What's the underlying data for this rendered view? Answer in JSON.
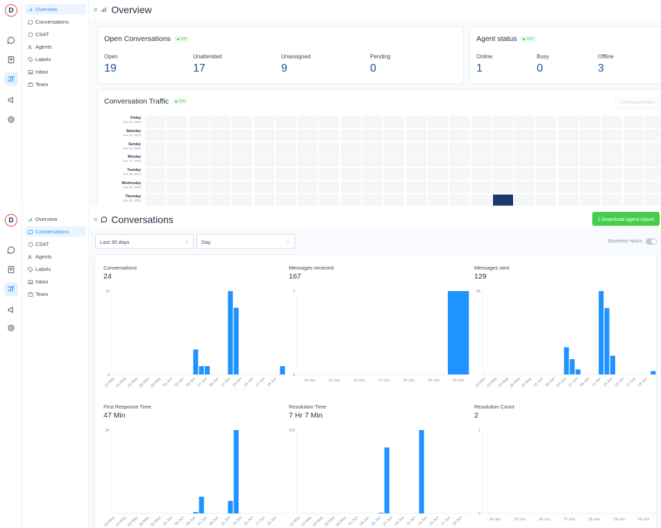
{
  "sidebar": {
    "logo_letter": "D",
    "icons": [
      "chat-icon",
      "contacts-icon",
      "reports-icon",
      "campaigns-icon",
      "settings-icon"
    ],
    "reports_items": [
      {
        "label": "Overview",
        "icon": "overview-icon"
      },
      {
        "label": "Conversations",
        "icon": "conversations-icon"
      },
      {
        "label": "CSAT",
        "icon": "csat-icon"
      },
      {
        "label": "Agents",
        "icon": "agents-icon"
      },
      {
        "label": "Labels",
        "icon": "labels-icon"
      },
      {
        "label": "Inbox",
        "icon": "inbox-icon"
      },
      {
        "label": "Team",
        "icon": "team-icon"
      }
    ]
  },
  "overview": {
    "title": "Overview",
    "open_conversations": {
      "title": "Open Conversations",
      "live": "Live",
      "metrics": [
        {
          "label": "Open",
          "value": "19"
        },
        {
          "label": "Unattended",
          "value": "17"
        },
        {
          "label": "Unassigned",
          "value": "9"
        },
        {
          "label": "Pending",
          "value": "0"
        }
      ]
    },
    "agent_status": {
      "title": "Agent status",
      "live": "Live",
      "metrics": [
        {
          "label": "Online",
          "value": "1"
        },
        {
          "label": "Busy",
          "value": "0"
        },
        {
          "label": "Offline",
          "value": "3"
        }
      ]
    },
    "traffic": {
      "title": "Conversation Traffic",
      "live": "Live",
      "download_label": "Download Report",
      "days": [
        {
          "day": "Friday",
          "date": "Jun 14, 2024"
        },
        {
          "day": "Saturday",
          "date": "Jun 15, 2024"
        },
        {
          "day": "Sunday",
          "date": "Jun 16, 2024"
        },
        {
          "day": "Monday",
          "date": "Jun 17, 2024"
        },
        {
          "day": "Tuesday",
          "date": "Jun 18, 2024"
        },
        {
          "day": "Wednesday",
          "date": "Jun 19, 2024"
        },
        {
          "day": "Thursday",
          "date": "Jun 20, 2024"
        }
      ],
      "hot_cell": {
        "day_index": 6,
        "hour_index": 16
      }
    }
  },
  "conversations_page": {
    "title": "Conversations",
    "download_label": "Download agent report",
    "range_select": "Last 30 days",
    "group_select": "Day",
    "business_hours_label": "Business Hours"
  },
  "colors": {
    "accent": "#1f93ff",
    "bar": "#1f93ff",
    "green": "#44ce4b",
    "heat_hot": "#1b3a70"
  },
  "chart_data": [
    {
      "type": "bar",
      "title": "Conversations",
      "summary": "24",
      "y_tick_labels": [
        "0",
        "10"
      ],
      "ylim": [
        0,
        10
      ],
      "x": [
        "22-May",
        "23-May",
        "24-May",
        "25-May",
        "26-May",
        "27-May",
        "28-May",
        "29-May",
        "30-May",
        "31-May",
        "01-Jun",
        "02-Jun",
        "03-Jun",
        "04-Jun",
        "05-Jun",
        "06-Jun",
        "07-Jun",
        "08-Jun",
        "09-Jun",
        "10-Jun",
        "11-Jun",
        "12-Jun",
        "13-Jun",
        "14-Jun",
        "15-Jun",
        "16-Jun",
        "17-Jun",
        "18-Jun",
        "19-Jun",
        "20-Jun"
      ],
      "x_tick_labels": [
        "22-May",
        "24-May",
        "26-May",
        "28-May",
        "30-May",
        "01-Jun",
        "03-Jun",
        "05-Jun",
        "07-Jun",
        "09-Jun",
        "11-Jun",
        "13-Jun",
        "15-Jun",
        "17-Jun",
        "19-Jun"
      ],
      "values": [
        0,
        0,
        0,
        0,
        0,
        0,
        0,
        0,
        0,
        0,
        0,
        0,
        0,
        0,
        3,
        1,
        1,
        0,
        0,
        0,
        10,
        8,
        0,
        0,
        0,
        0,
        0,
        0,
        0,
        1
      ]
    },
    {
      "type": "bar",
      "title": "Messages received",
      "summary": "167",
      "y_tick_labels": [
        "0",
        "2"
      ],
      "ylim": [
        0,
        2
      ],
      "x": [
        "14-Jun",
        "15-Jun",
        "16-Jun",
        "17-Jun",
        "18-Jun",
        "19-Jun",
        "20-Jun"
      ],
      "x_tick_labels": [
        "14-Jun",
        "15-Jun",
        "16-Jun",
        "17-Jun",
        "18-Jun",
        "19-Jun",
        "20-Jun"
      ],
      "values": [
        0,
        0,
        0,
        0,
        0,
        0,
        2
      ]
    },
    {
      "type": "bar",
      "title": "Messages sent",
      "summary": "129",
      "y_tick_labels": [
        "49"
      ],
      "ylim": [
        0,
        49
      ],
      "x": [
        "22-May",
        "23-May",
        "24-May",
        "25-May",
        "26-May",
        "27-May",
        "28-May",
        "29-May",
        "30-May",
        "31-May",
        "01-Jun",
        "02-Jun",
        "03-Jun",
        "04-Jun",
        "05-Jun",
        "06-Jun",
        "07-Jun",
        "08-Jun",
        "09-Jun",
        "10-Jun",
        "11-Jun",
        "12-Jun",
        "13-Jun",
        "14-Jun",
        "15-Jun",
        "16-Jun",
        "17-Jun",
        "18-Jun",
        "19-Jun",
        "20-Jun"
      ],
      "x_tick_labels": [
        "22-May",
        "24-May",
        "26-May",
        "28-May",
        "30-May",
        "01-Jun",
        "03-Jun",
        "05-Jun",
        "07-Jun",
        "09-Jun",
        "11-Jun",
        "13-Jun",
        "15-Jun",
        "17-Jun",
        "19-Jun"
      ],
      "values": [
        0,
        0,
        0,
        0,
        0,
        0,
        0,
        0,
        0,
        0,
        0,
        0,
        0,
        0,
        16,
        9,
        3,
        0,
        0,
        0,
        49,
        39,
        11,
        0,
        0,
        0,
        0,
        0,
        0,
        2
      ]
    },
    {
      "type": "bar",
      "title": "First Response Time",
      "summary": "47 Min",
      "y_tick_labels": [
        "3h"
      ],
      "ylim": [
        0,
        3
      ],
      "x": [
        "22-May",
        "23-May",
        "24-May",
        "25-May",
        "26-May",
        "27-May",
        "28-May",
        "29-May",
        "30-May",
        "31-May",
        "01-Jun",
        "02-Jun",
        "03-Jun",
        "04-Jun",
        "05-Jun",
        "06-Jun",
        "07-Jun",
        "08-Jun",
        "09-Jun",
        "10-Jun",
        "11-Jun",
        "12-Jun",
        "13-Jun",
        "14-Jun",
        "15-Jun",
        "16-Jun",
        "17-Jun",
        "18-Jun",
        "19-Jun",
        "20-Jun"
      ],
      "x_tick_labels": [
        "22-May",
        "24-May",
        "26-May",
        "28-May",
        "30-May",
        "01-Jun",
        "03-Jun",
        "05-Jun",
        "07-Jun",
        "09-Jun",
        "11-Jun",
        "13-Jun",
        "15-Jun",
        "17-Jun",
        "19-Jun"
      ],
      "values": [
        0,
        0,
        0,
        0,
        0,
        0,
        0,
        0,
        0,
        0,
        0,
        0,
        0,
        0,
        0.05,
        0.6,
        0,
        0,
        0,
        0,
        0.45,
        3,
        0,
        0,
        0,
        0,
        0,
        0,
        0,
        0
      ]
    },
    {
      "type": "bar",
      "title": "Resolution Time",
      "summary": "7 Hr 7 Min",
      "y_tick_labels": [
        "12h"
      ],
      "ylim": [
        0,
        12
      ],
      "x": [
        "22-May",
        "23-May",
        "24-May",
        "25-May",
        "26-May",
        "27-May",
        "28-May",
        "29-May",
        "30-May",
        "31-May",
        "01-Jun",
        "02-Jun",
        "03-Jun",
        "04-Jun",
        "05-Jun",
        "06-Jun",
        "07-Jun",
        "08-Jun",
        "09-Jun",
        "10-Jun",
        "11-Jun",
        "12-Jun",
        "13-Jun",
        "14-Jun",
        "15-Jun",
        "16-Jun",
        "17-Jun",
        "18-Jun",
        "19-Jun",
        "20-Jun"
      ],
      "x_tick_labels": [
        "22-May",
        "24-May",
        "26-May",
        "28-May",
        "30-May",
        "01-Jun",
        "03-Jun",
        "05-Jun",
        "07-Jun",
        "09-Jun",
        "11-Jun",
        "13-Jun",
        "15-Jun",
        "17-Jun",
        "19-Jun"
      ],
      "values": [
        0,
        0,
        0,
        0,
        0,
        0,
        0,
        0,
        0,
        0,
        0,
        0,
        0,
        0,
        0.1,
        9.5,
        0,
        0,
        0,
        0,
        0,
        12,
        0,
        0,
        0,
        0,
        0,
        0,
        0,
        0
      ]
    },
    {
      "type": "bar",
      "title": "Resolution Count",
      "summary": "2",
      "y_tick_labels": [
        "0",
        "1"
      ],
      "ylim": [
        0,
        1
      ],
      "x": [
        "14-Jun",
        "15-Jun",
        "16-Jun",
        "17-Jun",
        "18-Jun",
        "19-Jun",
        "20-Jun"
      ],
      "x_tick_labels": [
        "14-Jun",
        "15-Jun",
        "16-Jun",
        "17-Jun",
        "18-Jun",
        "19-Jun",
        "20-Jun"
      ],
      "values": [
        0,
        0,
        0,
        0,
        0,
        0,
        0
      ]
    }
  ]
}
